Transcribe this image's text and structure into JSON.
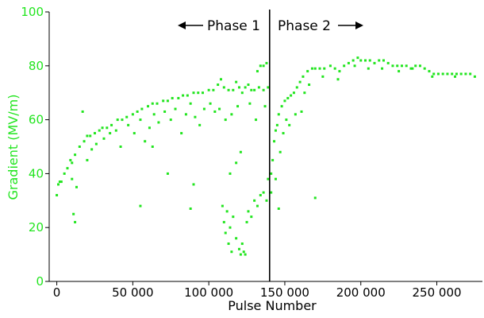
{
  "chart_data": {
    "type": "scatter",
    "title": "",
    "xlabel": "Pulse  Number",
    "ylabel": "Gradient  (MV/m)",
    "xlim": [
      -5000,
      280000
    ],
    "ylim": [
      0,
      100
    ],
    "x_ticks": [
      0,
      50000,
      100000,
      150000,
      200000,
      250000
    ],
    "x_tick_labels": [
      "0",
      "50 000",
      "100 000",
      "150 000",
      "200 000",
      "250 000"
    ],
    "y_ticks": [
      0,
      20,
      40,
      60,
      80,
      100
    ],
    "y_tick_labels": [
      "0",
      "20",
      "40",
      "60",
      "80",
      "100"
    ],
    "grid": false,
    "marker_color": "#22e51f",
    "ylabel_color": "#22e51f",
    "divider": {
      "x": 140000,
      "color": "#000000"
    },
    "annotations": [
      {
        "text": "Phase 1",
        "arrow": "left"
      },
      {
        "text": "Phase 2",
        "arrow": "right"
      }
    ],
    "series": [
      {
        "values": [
          [
            0,
            32
          ],
          [
            1000,
            36
          ],
          [
            2000,
            37
          ],
          [
            3000,
            37
          ],
          [
            5000,
            40
          ],
          [
            7000,
            42
          ],
          [
            9000,
            45
          ],
          [
            10000,
            44
          ],
          [
            12000,
            47
          ],
          [
            15000,
            50
          ],
          [
            18000,
            52
          ],
          [
            20000,
            54
          ],
          [
            22000,
            54
          ],
          [
            25000,
            55
          ],
          [
            28000,
            56
          ],
          [
            30000,
            57
          ],
          [
            33000,
            57
          ],
          [
            36000,
            58
          ],
          [
            40000,
            60
          ],
          [
            43000,
            60
          ],
          [
            46000,
            61
          ],
          [
            50000,
            62
          ],
          [
            53000,
            63
          ],
          [
            56000,
            64
          ],
          [
            60000,
            65
          ],
          [
            63000,
            66
          ],
          [
            66000,
            66
          ],
          [
            70000,
            67
          ],
          [
            73000,
            67
          ],
          [
            76000,
            68
          ],
          [
            80000,
            68
          ],
          [
            83000,
            69
          ],
          [
            86000,
            69
          ],
          [
            90000,
            70
          ],
          [
            93000,
            70
          ],
          [
            96000,
            70
          ],
          [
            100000,
            71
          ],
          [
            103000,
            71
          ],
          [
            106000,
            73
          ],
          [
            108000,
            75
          ],
          [
            110000,
            72
          ],
          [
            113000,
            71
          ],
          [
            116000,
            71
          ],
          [
            118000,
            74
          ],
          [
            120000,
            72
          ],
          [
            122000,
            70
          ],
          [
            124000,
            72
          ],
          [
            126000,
            73
          ],
          [
            128000,
            71
          ],
          [
            130000,
            71
          ],
          [
            132000,
            78
          ],
          [
            134000,
            80
          ],
          [
            136000,
            80
          ],
          [
            138000,
            81
          ],
          [
            133000,
            72
          ],
          [
            136000,
            71
          ],
          [
            139000,
            72
          ],
          [
            109000,
            28
          ],
          [
            110000,
            22
          ],
          [
            111000,
            18
          ],
          [
            112000,
            26
          ],
          [
            113000,
            14
          ],
          [
            114000,
            20
          ],
          [
            115000,
            11
          ],
          [
            116000,
            24
          ],
          [
            118000,
            16
          ],
          [
            120000,
            12
          ],
          [
            121000,
            10
          ],
          [
            122000,
            14
          ],
          [
            123000,
            11
          ],
          [
            124000,
            10
          ],
          [
            125000,
            22
          ],
          [
            126000,
            26
          ],
          [
            128000,
            24
          ],
          [
            130000,
            30
          ],
          [
            132000,
            28
          ],
          [
            134000,
            32
          ],
          [
            136000,
            33
          ],
          [
            138000,
            30
          ],
          [
            139000,
            38
          ],
          [
            141000,
            40
          ],
          [
            142000,
            45
          ],
          [
            143000,
            52
          ],
          [
            144000,
            56
          ],
          [
            145000,
            58
          ],
          [
            146000,
            62
          ],
          [
            148000,
            65
          ],
          [
            150000,
            67
          ],
          [
            152000,
            68
          ],
          [
            154000,
            69
          ],
          [
            156000,
            70
          ],
          [
            158000,
            72
          ],
          [
            160000,
            74
          ],
          [
            162000,
            76
          ],
          [
            165000,
            78
          ],
          [
            168000,
            79
          ],
          [
            170000,
            79
          ],
          [
            173000,
            79
          ],
          [
            176000,
            79
          ],
          [
            180000,
            80
          ],
          [
            183000,
            79
          ],
          [
            186000,
            78
          ],
          [
            189000,
            80
          ],
          [
            192000,
            81
          ],
          [
            195000,
            82
          ],
          [
            198000,
            83
          ],
          [
            200000,
            82
          ],
          [
            203000,
            82
          ],
          [
            206000,
            82
          ],
          [
            209000,
            81
          ],
          [
            212000,
            82
          ],
          [
            215000,
            82
          ],
          [
            218000,
            81
          ],
          [
            221000,
            80
          ],
          [
            224000,
            80
          ],
          [
            227000,
            80
          ],
          [
            230000,
            80
          ],
          [
            233000,
            79
          ],
          [
            236000,
            80
          ],
          [
            239000,
            80
          ],
          [
            242000,
            79
          ],
          [
            245000,
            78
          ],
          [
            248000,
            77
          ],
          [
            251000,
            77
          ],
          [
            254000,
            77
          ],
          [
            257000,
            77
          ],
          [
            260000,
            77
          ],
          [
            263000,
            77
          ],
          [
            266000,
            77
          ],
          [
            269000,
            77
          ],
          [
            272000,
            77
          ],
          [
            275000,
            76
          ],
          [
            149000,
            55
          ],
          [
            151000,
            60
          ],
          [
            153000,
            58
          ],
          [
            157000,
            62
          ],
          [
            161000,
            63
          ],
          [
            163000,
            70
          ],
          [
            166000,
            73
          ],
          [
            175000,
            76
          ],
          [
            185000,
            75
          ],
          [
            196000,
            80
          ],
          [
            205000,
            79
          ],
          [
            214000,
            79
          ],
          [
            225000,
            78
          ],
          [
            234000,
            79
          ],
          [
            247000,
            76
          ],
          [
            262000,
            76
          ],
          [
            20000,
            45
          ],
          [
            23000,
            49
          ],
          [
            26000,
            51
          ],
          [
            31000,
            53
          ],
          [
            35000,
            55
          ],
          [
            39000,
            56
          ],
          [
            42000,
            50
          ],
          [
            47000,
            58
          ],
          [
            51000,
            55
          ],
          [
            55000,
            60
          ],
          [
            58000,
            52
          ],
          [
            61000,
            57
          ],
          [
            64000,
            62
          ],
          [
            67000,
            59
          ],
          [
            71000,
            63
          ],
          [
            75000,
            60
          ],
          [
            78000,
            64
          ],
          [
            82000,
            55
          ],
          [
            85000,
            62
          ],
          [
            88000,
            66
          ],
          [
            91000,
            61
          ],
          [
            94000,
            58
          ],
          [
            97000,
            64
          ],
          [
            101000,
            66
          ],
          [
            104000,
            63
          ],
          [
            107000,
            64
          ],
          [
            111000,
            60
          ],
          [
            115000,
            62
          ],
          [
            119000,
            65
          ],
          [
            127000,
            66
          ],
          [
            131000,
            60
          ],
          [
            137000,
            65
          ],
          [
            11000,
            25
          ],
          [
            12000,
            22
          ],
          [
            10000,
            38
          ],
          [
            13000,
            35
          ],
          [
            17000,
            63
          ],
          [
            55000,
            28
          ],
          [
            63000,
            50
          ],
          [
            73000,
            40
          ],
          [
            88000,
            27
          ],
          [
            90000,
            36
          ],
          [
            114000,
            40
          ],
          [
            118000,
            44
          ],
          [
            121000,
            48
          ],
          [
            146000,
            27
          ],
          [
            170000,
            31
          ],
          [
            141000,
            33
          ],
          [
            144000,
            38
          ],
          [
            147000,
            48
          ]
        ]
      }
    ]
  }
}
